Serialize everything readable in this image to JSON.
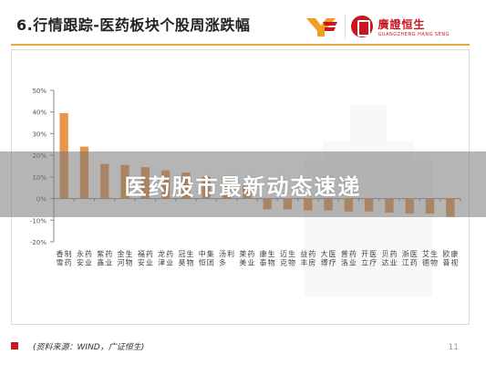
{
  "header": {
    "title": "6.行情跟踪-医药板块个股周涨跌幅",
    "logo_cn": "廣證恒生",
    "logo_en": "GUANGZHENG HANG SENG"
  },
  "overlay": {
    "text": "医药股市最新动态速递"
  },
  "footer": {
    "source": "(资料来源：WIND，广证恒生)",
    "page_number": "11"
  },
  "colors": {
    "bar": "#e8964a",
    "accent": "#c8161e",
    "rule": "#e8a83a"
  },
  "chart_data": {
    "type": "bar",
    "title": "",
    "xlabel": "",
    "ylabel": "",
    "ylim": [
      -20,
      50
    ],
    "yticks": [
      -20,
      -10,
      0,
      10,
      20,
      30,
      40,
      50
    ],
    "ytick_labels": [
      "-20%",
      "-10%",
      "0%",
      "10%",
      "20%",
      "30%",
      "40%",
      "50%"
    ],
    "grid": false,
    "categories": [
      "香雪制药",
      "永安药业",
      "紫鑫药业",
      "金河生物",
      "福安药业",
      "龙津药业",
      "冠昊生物",
      "中恒集团",
      "汤多利",
      "莱美药业",
      "康泰生物",
      "迈克生物",
      "益丰药房",
      "大博医疗",
      "普洛药业",
      "开立医疗",
      "贝达药业",
      "浙江医药",
      "艾德生物",
      "欧普康视"
    ],
    "values": [
      39.5,
      24,
      16,
      15.5,
      14.5,
      13,
      12,
      10,
      8,
      6,
      -5,
      -5,
      -5.5,
      -5.5,
      -6,
      -6,
      -6.5,
      -7,
      -7,
      -8.5
    ]
  }
}
